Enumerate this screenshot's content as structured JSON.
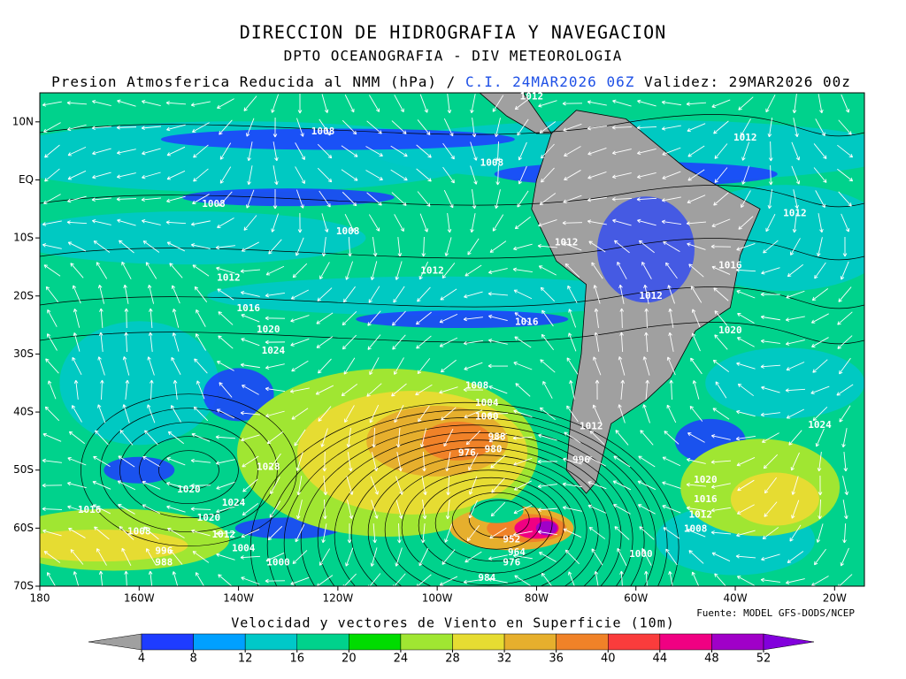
{
  "header": {
    "title": "DIRECCION DE HIDROGRAFIA Y NAVEGACION",
    "subtitle": "DPTO OCEANOGRAFIA - DIV METEOROLOGIA",
    "variable": "Presion Atmosferica Reducida al NMM (hPa) /",
    "init": "C.I. 24MAR2026 06Z",
    "valid": "Validez: 29MAR2026 00z"
  },
  "map": {
    "xlim": [
      -180,
      -14
    ],
    "ylim": [
      -70,
      15
    ],
    "xticks": [
      {
        "value": -180,
        "label": "180"
      },
      {
        "value": -160,
        "label": "160W"
      },
      {
        "value": -140,
        "label": "140W"
      },
      {
        "value": -120,
        "label": "120W"
      },
      {
        "value": -100,
        "label": "100W"
      },
      {
        "value": -80,
        "label": "80W"
      },
      {
        "value": -60,
        "label": "60W"
      },
      {
        "value": -40,
        "label": "40W"
      },
      {
        "value": -20,
        "label": "20W"
      }
    ],
    "yticks": [
      {
        "value": 10,
        "label": "10N"
      },
      {
        "value": 0,
        "label": "EQ"
      },
      {
        "value": -10,
        "label": "10S"
      },
      {
        "value": -20,
        "label": "20S"
      },
      {
        "value": -30,
        "label": "30S"
      },
      {
        "value": -40,
        "label": "40S"
      },
      {
        "value": -50,
        "label": "50S"
      },
      {
        "value": -60,
        "label": "60S"
      },
      {
        "value": -70,
        "label": "70S"
      }
    ],
    "isobar_labels": [
      {
        "label": "1012",
        "lon": -81,
        "lat": 14.3
      },
      {
        "label": "1008",
        "lon": -123,
        "lat": 8.3
      },
      {
        "label": "1012",
        "lon": -38,
        "lat": 7.2
      },
      {
        "label": "1008",
        "lon": -89,
        "lat": 2.9
      },
      {
        "label": "1008",
        "lon": -145,
        "lat": -4.2
      },
      {
        "label": "1012",
        "lon": -28,
        "lat": -5.8
      },
      {
        "label": "1008",
        "lon": -118,
        "lat": -8.9
      },
      {
        "label": "1012",
        "lon": -74,
        "lat": -10.8
      },
      {
        "label": "1012",
        "lon": -101,
        "lat": -15.7
      },
      {
        "label": "1016",
        "lon": -41,
        "lat": -14.8
      },
      {
        "label": "1012",
        "lon": -142,
        "lat": -16.9
      },
      {
        "label": "1012",
        "lon": -57,
        "lat": -20
      },
      {
        "label": "1016",
        "lon": -138,
        "lat": -22.2
      },
      {
        "label": "1016",
        "lon": -82,
        "lat": -24.5
      },
      {
        "label": "1020",
        "lon": -134,
        "lat": -25.8
      },
      {
        "label": "1020",
        "lon": -41,
        "lat": -26
      },
      {
        "label": "1024",
        "lon": -133,
        "lat": -29.5
      },
      {
        "label": "1008",
        "lon": -92,
        "lat": -35.5
      },
      {
        "label": "1004",
        "lon": -90,
        "lat": -38.5
      },
      {
        "label": "1000",
        "lon": -90,
        "lat": -40.8
      },
      {
        "label": "1012",
        "lon": -69,
        "lat": -42.5
      },
      {
        "label": "1024",
        "lon": -23,
        "lat": -42.3
      },
      {
        "label": "988",
        "lon": -88,
        "lat": -44.3
      },
      {
        "label": "980",
        "lon": -88.7,
        "lat": -46.5
      },
      {
        "label": "976",
        "lon": -94,
        "lat": -47.1
      },
      {
        "label": "996",
        "lon": -71,
        "lat": -48.3
      },
      {
        "label": "1028",
        "lon": -134,
        "lat": -49.5
      },
      {
        "label": "1020",
        "lon": -46,
        "lat": -51.7
      },
      {
        "label": "1020",
        "lon": -150,
        "lat": -53.4
      },
      {
        "label": "1016",
        "lon": -46,
        "lat": -55.1
      },
      {
        "label": "1024",
        "lon": -141,
        "lat": -55.7
      },
      {
        "label": "1016",
        "lon": -170,
        "lat": -56.9
      },
      {
        "label": "1012",
        "lon": -47,
        "lat": -57.7
      },
      {
        "label": "1020",
        "lon": -146,
        "lat": -58.3
      },
      {
        "label": "1008",
        "lon": -160,
        "lat": -60.6
      },
      {
        "label": "1008",
        "lon": -48,
        "lat": -60.2
      },
      {
        "label": "1012",
        "lon": -143,
        "lat": -61.2
      },
      {
        "label": "952",
        "lon": -85,
        "lat": -62
      },
      {
        "label": "1004",
        "lon": -139,
        "lat": -63.5
      },
      {
        "label": "996",
        "lon": -155,
        "lat": -64
      },
      {
        "label": "964",
        "lon": -84,
        "lat": -64.2
      },
      {
        "label": "1000",
        "lon": -59,
        "lat": -64.5
      },
      {
        "label": "976",
        "lon": -85,
        "lat": -66
      },
      {
        "label": "988",
        "lon": -155,
        "lat": -66
      },
      {
        "label": "1000",
        "lon": -132,
        "lat": -66
      },
      {
        "label": "984",
        "lon": -90,
        "lat": -68.6
      }
    ]
  },
  "colorbar": {
    "title": "Velocidad y vectores de Viento en Superficie (10m)",
    "ticks": [
      4,
      8,
      12,
      16,
      20,
      24,
      28,
      32,
      36,
      40,
      44,
      48,
      52
    ],
    "colors": [
      "#a0a0a0",
      "#1e3cff",
      "#00a0ff",
      "#00c8c8",
      "#00d28c",
      "#00dc00",
      "#a0e632",
      "#e6dc32",
      "#e6af2d",
      "#f08228",
      "#fa3c3c",
      "#f00082",
      "#a000c8",
      "#8200dc"
    ]
  },
  "source": "Fuente: MODEL GFS-DODS/NCEP"
}
